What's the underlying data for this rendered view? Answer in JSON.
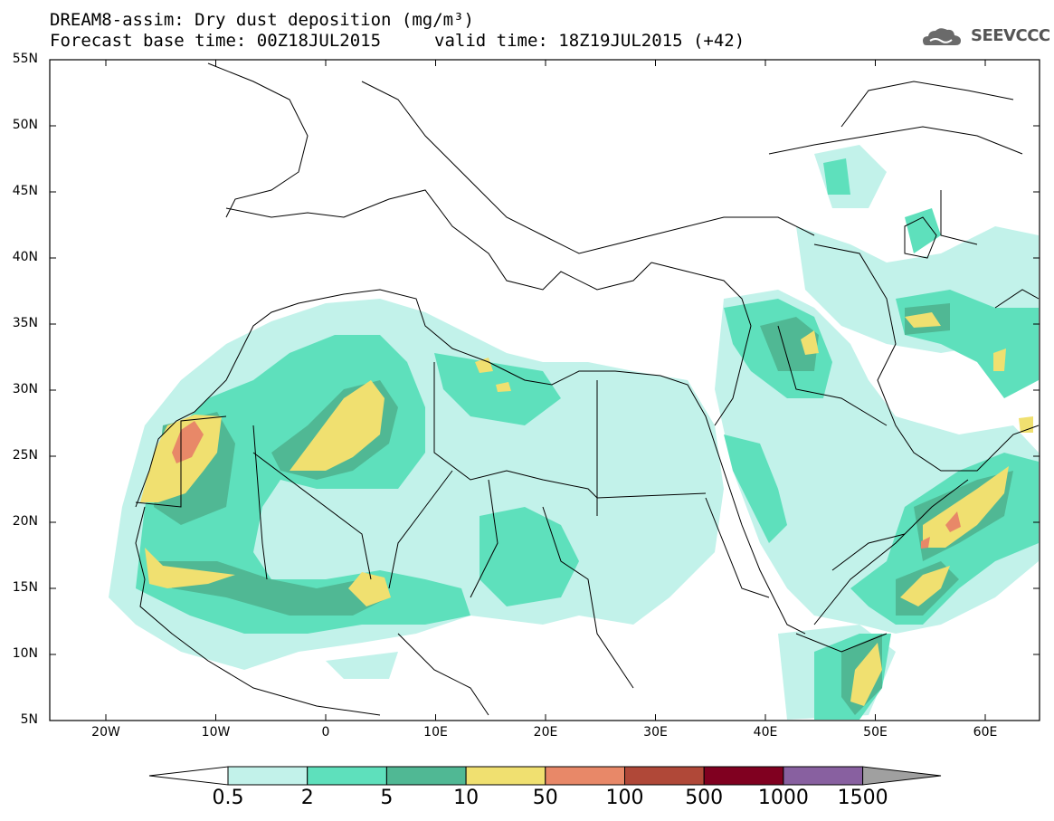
{
  "title": {
    "line1": "DREAM8-assim: Dry dust deposition (mg/m³)",
    "line2": "Forecast base time: 00Z18JUL2015",
    "valid": "valid time: 18Z19JUL2015 (+42)"
  },
  "logo": {
    "text": "SEEVCCC",
    "icon": "cloud-icon"
  },
  "map_axes": {
    "lat_labels": [
      "55N",
      "50N",
      "45N",
      "40N",
      "35N",
      "30N",
      "25N",
      "20N",
      "15N",
      "10N",
      "5N"
    ],
    "lon_labels": [
      "20W",
      "10W",
      "0",
      "10E",
      "20E",
      "30E",
      "40E",
      "50E",
      "60E"
    ]
  },
  "legend": {
    "labels": [
      "0.5",
      "2",
      "5",
      "10",
      "50",
      "100",
      "500",
      "1000",
      "1500"
    ],
    "colors": [
      "#c2f2ea",
      "#5ee0bc",
      "#50b894",
      "#f0e070",
      "#e88868",
      "#b04838",
      "#800020",
      "#8860a0"
    ],
    "under_color": "#ffffff",
    "over_color": "#a0a0a0"
  }
}
